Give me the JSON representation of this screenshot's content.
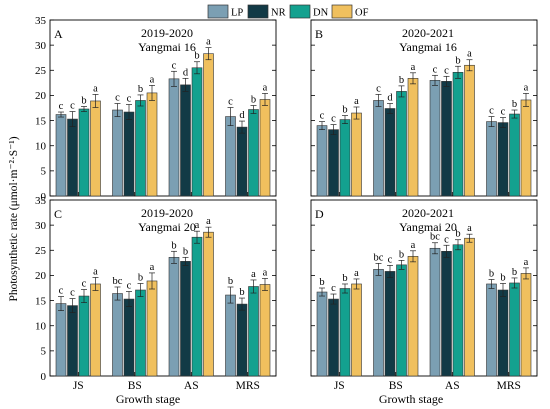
{
  "legend": [
    {
      "key": "LP",
      "label": "LP",
      "color": "#7b9fb3"
    },
    {
      "key": "NR",
      "label": "NR",
      "color": "#123a46"
    },
    {
      "key": "DN",
      "label": "DN",
      "color": "#13a18f"
    },
    {
      "key": "OF",
      "label": "OF",
      "color": "#f0c05e"
    }
  ],
  "y_axis_label": "Photosynthetic rate (μmol·m⁻²·S⁻¹)",
  "x_axis_label": "Growth stage",
  "chart_data": [
    {
      "type": "bar",
      "panel": "A",
      "title": "2019-2020",
      "subtitle": "Yangmai 16",
      "categories": [
        "JS",
        "BS",
        "AS",
        "MRS"
      ],
      "ylim": [
        0,
        35
      ],
      "yticks": [
        0,
        5,
        10,
        15,
        20,
        25,
        30,
        35
      ],
      "series": [
        {
          "name": "LP",
          "values": [
            16.2,
            17.1,
            23.3,
            15.8
          ],
          "errors": [
            0.5,
            1.3,
            1.5,
            1.8
          ],
          "letters": [
            "c",
            "c",
            "c",
            "c"
          ]
        },
        {
          "name": "NR",
          "values": [
            15.3,
            16.7,
            22.1,
            13.7
          ],
          "errors": [
            1.5,
            1.5,
            1.3,
            1.2
          ],
          "letters": [
            "c",
            "c",
            "d",
            "d"
          ]
        },
        {
          "name": "DN",
          "values": [
            17.3,
            19.0,
            25.5,
            17.2
          ],
          "errors": [
            0.5,
            1.1,
            1.2,
            0.8
          ],
          "letters": [
            "b",
            "b",
            "b",
            "b"
          ]
        },
        {
          "name": "OF",
          "values": [
            18.9,
            20.5,
            28.3,
            19.2
          ],
          "errors": [
            1.3,
            1.5,
            1.2,
            1.2
          ],
          "letters": [
            "a",
            "a",
            "a",
            "a"
          ]
        }
      ]
    },
    {
      "type": "bar",
      "panel": "B",
      "title": "2020-2021",
      "subtitle": "Yangmai 16",
      "categories": [
        "JS",
        "BS",
        "AS",
        "MRS"
      ],
      "ylim": [
        0,
        35
      ],
      "yticks": [
        0,
        5,
        10,
        15,
        20,
        25,
        30,
        35
      ],
      "series": [
        {
          "name": "LP",
          "values": [
            14.0,
            19.0,
            23.0,
            14.8
          ],
          "errors": [
            0.8,
            1.2,
            1.0,
            1.0
          ],
          "letters": [
            "c",
            "c",
            "c",
            "c"
          ]
        },
        {
          "name": "NR",
          "values": [
            13.2,
            17.4,
            22.8,
            14.6
          ],
          "errors": [
            1.0,
            1.0,
            1.0,
            1.0
          ],
          "letters": [
            "c",
            "d",
            "c",
            "c"
          ]
        },
        {
          "name": "DN",
          "values": [
            15.2,
            20.8,
            24.6,
            16.3
          ],
          "errors": [
            0.8,
            1.1,
            1.2,
            0.8
          ],
          "letters": [
            "b",
            "b",
            "b",
            "b"
          ]
        },
        {
          "name": "OF",
          "values": [
            16.5,
            23.4,
            26.0,
            19.1
          ],
          "errors": [
            1.2,
            1.1,
            1.1,
            1.3
          ],
          "letters": [
            "a",
            "a",
            "a",
            "a"
          ]
        }
      ]
    },
    {
      "type": "bar",
      "panel": "C",
      "title": "2019-2020",
      "subtitle": "Yangmai 20",
      "categories": [
        "JS",
        "BS",
        "AS",
        "MRS"
      ],
      "ylim": [
        0,
        35
      ],
      "yticks": [
        0,
        5,
        10,
        15,
        20,
        25,
        30,
        35
      ],
      "series": [
        {
          "name": "LP",
          "values": [
            14.4,
            16.4,
            23.6,
            16.1
          ],
          "errors": [
            1.4,
            1.3,
            1.2,
            1.6
          ],
          "letters": [
            "c",
            "bc",
            "b",
            "b"
          ]
        },
        {
          "name": "NR",
          "values": [
            14.0,
            15.3,
            22.8,
            14.3
          ],
          "errors": [
            1.4,
            1.5,
            0.8,
            1.2
          ],
          "letters": [
            "c",
            "c",
            "b",
            "b"
          ]
        },
        {
          "name": "DN",
          "values": [
            15.9,
            17.1,
            27.6,
            17.8
          ],
          "errors": [
            1.3,
            1.3,
            1.2,
            1.3
          ],
          "letters": [
            "c",
            "b",
            "a",
            "a"
          ]
        },
        {
          "name": "OF",
          "values": [
            18.3,
            18.9,
            28.6,
            18.2
          ],
          "errors": [
            1.3,
            1.6,
            1.0,
            1.2
          ],
          "letters": [
            "a",
            "a",
            "a",
            "a"
          ]
        }
      ]
    },
    {
      "type": "bar",
      "panel": "D",
      "title": "2020-2021",
      "subtitle": "Yangmai 20",
      "categories": [
        "JS",
        "BS",
        "AS",
        "MRS"
      ],
      "ylim": [
        0,
        35
      ],
      "yticks": [
        0,
        5,
        10,
        15,
        20,
        25,
        30,
        35
      ],
      "series": [
        {
          "name": "LP",
          "values": [
            16.7,
            21.2,
            25.4,
            18.3
          ],
          "errors": [
            0.8,
            1.2,
            1.1,
            0.9
          ],
          "letters": [
            "b",
            "bc",
            "bc",
            "b"
          ]
        },
        {
          "name": "NR",
          "values": [
            15.3,
            20.8,
            24.8,
            17.1
          ],
          "errors": [
            1.0,
            1.2,
            1.2,
            1.3
          ],
          "letters": [
            "c",
            "c",
            "c",
            "b"
          ]
        },
        {
          "name": "DN",
          "values": [
            17.4,
            22.1,
            26.1,
            18.5
          ],
          "errors": [
            0.9,
            0.9,
            1.0,
            1.0
          ],
          "letters": [
            "b",
            "b",
            "b",
            "b"
          ]
        },
        {
          "name": "OF",
          "values": [
            18.3,
            23.8,
            27.4,
            20.4
          ],
          "errors": [
            1.0,
            1.1,
            0.8,
            1.1
          ],
          "letters": [
            "a",
            "a",
            "a",
            "a"
          ]
        }
      ]
    }
  ]
}
